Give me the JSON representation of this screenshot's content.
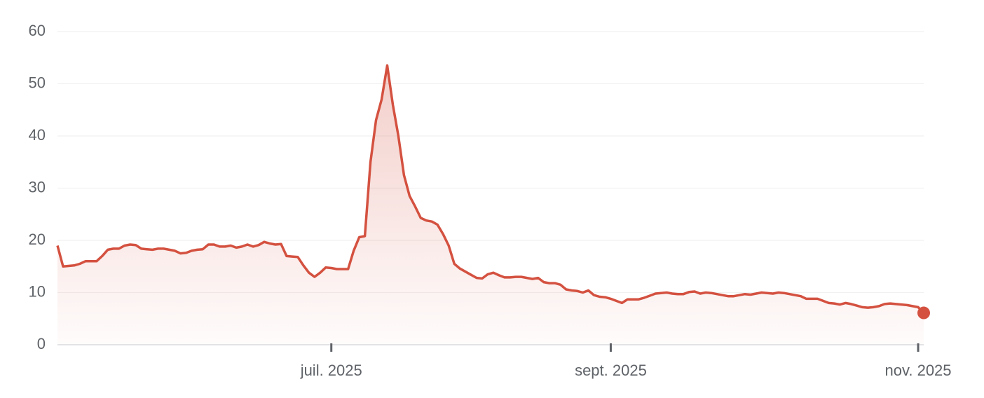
{
  "chart_data": {
    "type": "line",
    "color": "#d45140",
    "categories": [
      null,
      null,
      null,
      null,
      null,
      null,
      null,
      null,
      null,
      null,
      null,
      null,
      null,
      null,
      null,
      null,
      null,
      null,
      null,
      null,
      null,
      null,
      null,
      null,
      null,
      null,
      null,
      null,
      null,
      null,
      null,
      null,
      null,
      null,
      null,
      null,
      null,
      null,
      null,
      null,
      null,
      null,
      null,
      null,
      null,
      null,
      null,
      null,
      null,
      "juil. 2025",
      null,
      null,
      null,
      null,
      null,
      null,
      null,
      null,
      null,
      null,
      null,
      null,
      null,
      null,
      null,
      null,
      null,
      null,
      null,
      null,
      null,
      null,
      null,
      null,
      null,
      null,
      null,
      null,
      null,
      null,
      null,
      null,
      null,
      null,
      null,
      null,
      null,
      null,
      null,
      null,
      null,
      null,
      null,
      null,
      null,
      null,
      null,
      null,
      null,
      "sept. 2025",
      null,
      null,
      null,
      null,
      null,
      null,
      null,
      null,
      null,
      null,
      null,
      null,
      null,
      null,
      null,
      null,
      null,
      null,
      null,
      null,
      null,
      null,
      null,
      null,
      null,
      null,
      null,
      null,
      null,
      null,
      null,
      null,
      null,
      null,
      null,
      null,
      null,
      null,
      null,
      null,
      null,
      null,
      null,
      null,
      null,
      null,
      null,
      null,
      null,
      null,
      null,
      null,
      null,
      null,
      "nov. 2025",
      null
    ],
    "values": [
      19,
      15,
      15.1,
      15.2,
      15.5,
      16,
      16,
      16,
      17,
      18.2,
      18.4,
      18.4,
      19,
      19.2,
      19.1,
      18.4,
      18.3,
      18.2,
      18.4,
      18.4,
      18.2,
      18,
      17.5,
      17.6,
      18,
      18.2,
      18.3,
      19.2,
      19.2,
      18.8,
      18.8,
      19,
      18.6,
      18.8,
      19.2,
      18.8,
      19.1,
      19.7,
      19.4,
      19.2,
      19.3,
      17,
      16.9,
      16.8,
      15.2,
      13.8,
      13,
      13.8,
      14.8,
      14.7,
      14.5,
      14.5,
      14.5,
      18,
      20.6,
      20.8,
      35,
      43,
      47,
      53.5,
      46,
      40,
      32.5,
      28.5,
      26.5,
      24.3,
      23.8,
      23.6,
      23,
      21.2,
      19,
      15.5,
      14.6,
      14,
      13.4,
      12.8,
      12.7,
      13.5,
      13.8,
      13.3,
      12.9,
      12.9,
      13,
      13,
      12.8,
      12.6,
      12.8,
      12,
      11.8,
      11.8,
      11.5,
      10.6,
      10.4,
      10.3,
      10,
      10.4,
      9.5,
      9.2,
      9.1,
      8.8,
      8.4,
      8,
      8.7,
      8.7,
      8.7,
      9,
      9.4,
      9.8,
      9.9,
      10,
      9.8,
      9.7,
      9.7,
      10.1,
      10.2,
      9.8,
      10,
      9.9,
      9.7,
      9.5,
      9.3,
      9.3,
      9.5,
      9.7,
      9.6,
      9.8,
      10,
      9.9,
      9.8,
      10,
      9.9,
      9.7,
      9.5,
      9.3,
      8.8,
      8.8,
      8.8,
      8.4,
      8,
      7.9,
      7.7,
      8,
      7.8,
      7.5,
      7.2,
      7.1,
      7.2,
      7.4,
      7.8,
      7.9,
      7.8,
      7.7,
      7.6,
      7.4,
      7.2,
      6.1
    ],
    "ylim": [
      0,
      60
    ],
    "yticks": [
      0,
      10,
      20,
      30,
      40,
      50,
      60
    ],
    "grid": true
  }
}
